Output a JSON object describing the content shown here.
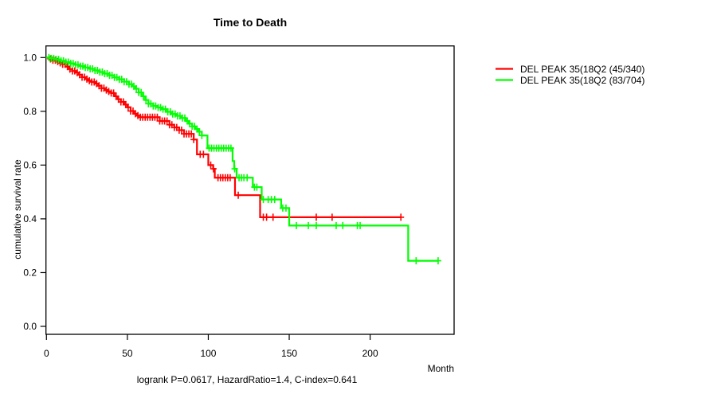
{
  "chart_data": {
    "type": "line",
    "subtype": "kaplan-meier-step",
    "title": "Time to Death",
    "xlabel": "Month",
    "ylabel": "cumulative survival rate",
    "caption": "logrank P=0.0617, HazardRatio=1.4, C-index=0.641",
    "x_ticks": [
      0,
      50,
      100,
      150,
      200
    ],
    "y_ticks": [
      0.0,
      0.2,
      0.4,
      0.6,
      0.8,
      1.0
    ],
    "xlim": [
      0,
      252
    ],
    "ylim": [
      0.0,
      1.0
    ],
    "grid": false,
    "legend_position": "top-right-outside",
    "axis_color": "#000000",
    "series": [
      {
        "name": "DEL PEAK 35(18Q2 (45/340)",
        "color": "#ff0000",
        "end_month": 219,
        "steps": [
          [
            0,
            1.0
          ],
          [
            2,
            0.995
          ],
          [
            4,
            0.99
          ],
          [
            6,
            0.985
          ],
          [
            8,
            0.98
          ],
          [
            10,
            0.975
          ],
          [
            12,
            0.966
          ],
          [
            14,
            0.957
          ],
          [
            16,
            0.95
          ],
          [
            18,
            0.944
          ],
          [
            20,
            0.936
          ],
          [
            22,
            0.927
          ],
          [
            24,
            0.92
          ],
          [
            26,
            0.914
          ],
          [
            28,
            0.909
          ],
          [
            30,
            0.903
          ],
          [
            32,
            0.895
          ],
          [
            34,
            0.886
          ],
          [
            36,
            0.879
          ],
          [
            38,
            0.874
          ],
          [
            40,
            0.868
          ],
          [
            42,
            0.856
          ],
          [
            44,
            0.845
          ],
          [
            46,
            0.835
          ],
          [
            48,
            0.825
          ],
          [
            50,
            0.815
          ],
          [
            52,
            0.801
          ],
          [
            54,
            0.791
          ],
          [
            56,
            0.784
          ],
          [
            58,
            0.778
          ],
          [
            70,
            0.764
          ],
          [
            76,
            0.75
          ],
          [
            79,
            0.74
          ],
          [
            82,
            0.73
          ],
          [
            85,
            0.716
          ],
          [
            91,
            0.695
          ],
          [
            93,
            0.64
          ],
          [
            100,
            0.6
          ],
          [
            103,
            0.586
          ],
          [
            104,
            0.553
          ],
          [
            116.5,
            0.488
          ],
          [
            132,
            0.406
          ]
        ],
        "censor_months": [
          2.5,
          4,
          5.5,
          7,
          8.5,
          10,
          11.5,
          13,
          14.5,
          16,
          17.5,
          19,
          20.5,
          22,
          23.5,
          25,
          26.5,
          28,
          29.5,
          31,
          32.5,
          34,
          35.5,
          37,
          38.5,
          40,
          41.5,
          43,
          44.5,
          46,
          47.5,
          49,
          50.5,
          52,
          53.5,
          55,
          56.5,
          58,
          59.5,
          61,
          62.5,
          64,
          65.5,
          67,
          68.5,
          70,
          71.5,
          73,
          74.5,
          76,
          77.5,
          79,
          80.5,
          82,
          83.5,
          85,
          86.5,
          88,
          89.5,
          91,
          95,
          97,
          101.5,
          103.2,
          106,
          107.5,
          109,
          110.5,
          112,
          113.5,
          118.5,
          134,
          136,
          140,
          166.7,
          176.5,
          219
        ]
      },
      {
        "name": "DEL PEAK 35(18Q2 (83/704)",
        "color": "#00ff00",
        "end_month": 242,
        "steps": [
          [
            0,
            1.0
          ],
          [
            3,
            0.997
          ],
          [
            6,
            0.993
          ],
          [
            9,
            0.988
          ],
          [
            12,
            0.983
          ],
          [
            15,
            0.978
          ],
          [
            18,
            0.973
          ],
          [
            21,
            0.968
          ],
          [
            24,
            0.963
          ],
          [
            27,
            0.958
          ],
          [
            30,
            0.952
          ],
          [
            33,
            0.946
          ],
          [
            36,
            0.94
          ],
          [
            39,
            0.934
          ],
          [
            42,
            0.926
          ],
          [
            45,
            0.919
          ],
          [
            48,
            0.91
          ],
          [
            51,
            0.901
          ],
          [
            53,
            0.893
          ],
          [
            55,
            0.884
          ],
          [
            57,
            0.87
          ],
          [
            59,
            0.856
          ],
          [
            61,
            0.842
          ],
          [
            63,
            0.828
          ],
          [
            66,
            0.82
          ],
          [
            69,
            0.814
          ],
          [
            71,
            0.808
          ],
          [
            74,
            0.798
          ],
          [
            77,
            0.79
          ],
          [
            80,
            0.783
          ],
          [
            83,
            0.775
          ],
          [
            86,
            0.764
          ],
          [
            88,
            0.754
          ],
          [
            90,
            0.744
          ],
          [
            92,
            0.734
          ],
          [
            94,
            0.724
          ],
          [
            96,
            0.71
          ],
          [
            99.5,
            0.663
          ],
          [
            115,
            0.615
          ],
          [
            116,
            0.586
          ],
          [
            117.5,
            0.553
          ],
          [
            127.5,
            0.518
          ],
          [
            133,
            0.472
          ],
          [
            145,
            0.44
          ],
          [
            150,
            0.375
          ],
          [
            223.5,
            0.244
          ]
        ],
        "censor_months": [
          1.5,
          3,
          4.5,
          6,
          7.5,
          9,
          10.5,
          12,
          13.5,
          15,
          16.5,
          18,
          19.5,
          21,
          22.5,
          24,
          25.5,
          27,
          28.5,
          30,
          31.5,
          33,
          34.5,
          36,
          37.5,
          39,
          40.5,
          42,
          43.5,
          45,
          46.5,
          48,
          49.5,
          51,
          52.5,
          54,
          55.5,
          57,
          58.5,
          60,
          61.5,
          63,
          64.5,
          66,
          67.5,
          69,
          70.5,
          72,
          73.5,
          75,
          76.5,
          78,
          79.5,
          81,
          82.5,
          84,
          85.5,
          87,
          88.5,
          90,
          91.5,
          93,
          94.5,
          96,
          100.5,
          102,
          103.5,
          105,
          106.5,
          108,
          109.5,
          111,
          112.5,
          114,
          116.3,
          119,
          120.5,
          122,
          124,
          128.5,
          130,
          134,
          137,
          139,
          141,
          146,
          148,
          154.4,
          161.8,
          166.7,
          179,
          183.1,
          192.1,
          193.8,
          228.4,
          242
        ]
      }
    ]
  }
}
